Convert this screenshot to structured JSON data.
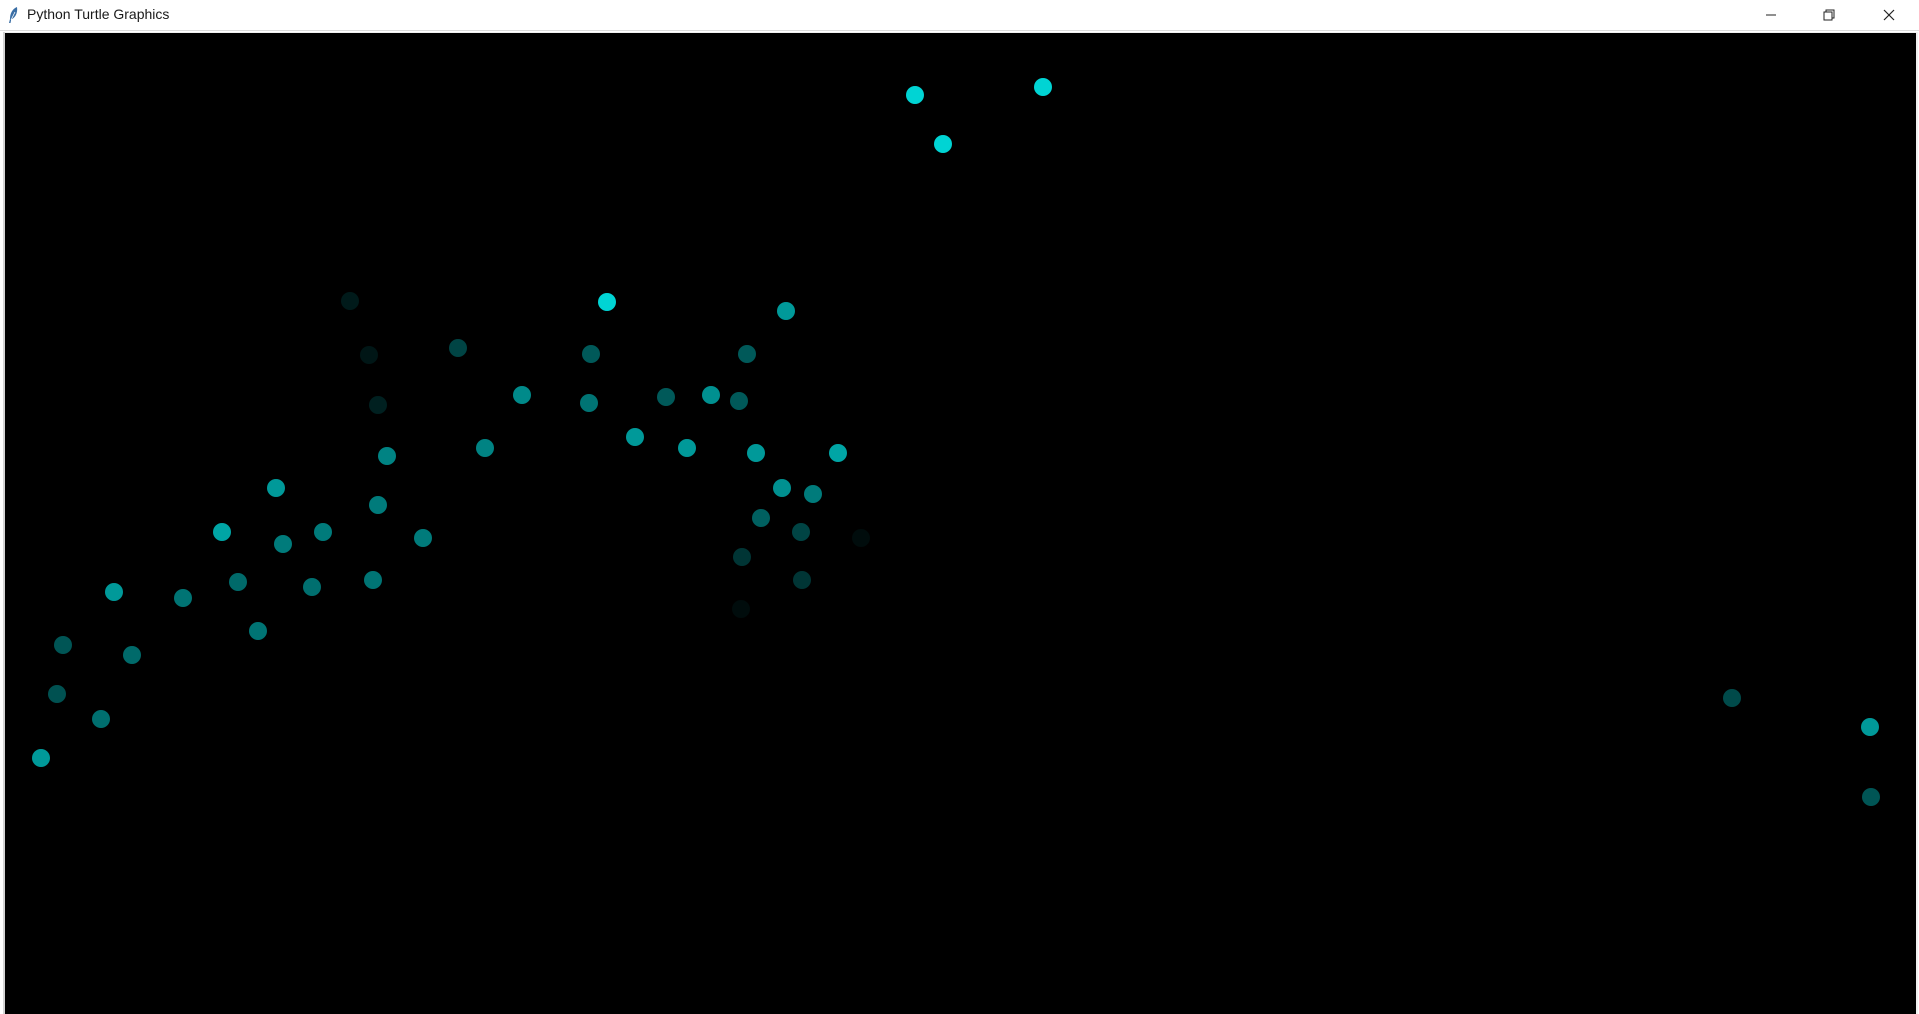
{
  "window": {
    "title": "Python Turtle Graphics",
    "icon": "feather-icon",
    "controls": {
      "minimize_icon": "minimize-icon",
      "maximize_icon": "restore-icon",
      "close_icon": "close-icon"
    }
  },
  "canvas": {
    "background": "#000000",
    "dot_color": "#00d4d4"
  }
}
